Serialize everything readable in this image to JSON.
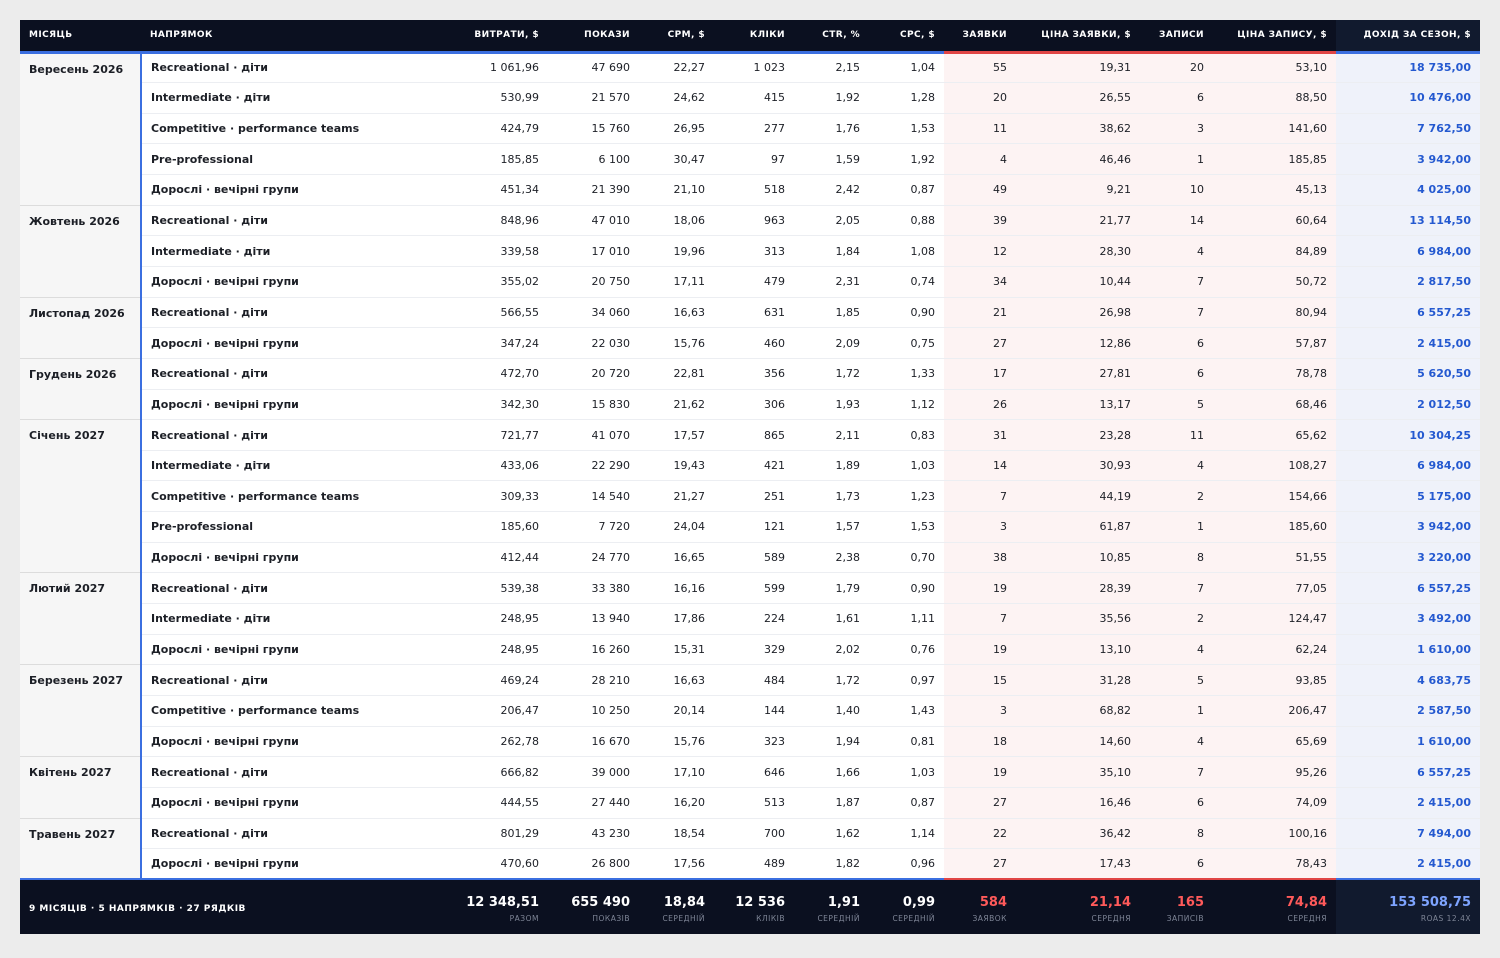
{
  "columns": [
    {
      "key": "month",
      "label": "МІСЯЦЬ"
    },
    {
      "key": "direction",
      "label": "НАПРЯМОК"
    },
    {
      "key": "spend",
      "label": "ВИТРАТИ, $"
    },
    {
      "key": "impressions",
      "label": "ПОКАЗИ"
    },
    {
      "key": "cpm",
      "label": "CPM, $"
    },
    {
      "key": "clicks",
      "label": "КЛІКИ"
    },
    {
      "key": "ctr",
      "label": "CTR, %"
    },
    {
      "key": "cpc",
      "label": "CPC, $"
    },
    {
      "key": "leads",
      "label": "ЗАЯВКИ"
    },
    {
      "key": "lead_price",
      "label": "ЦІНА ЗАЯВКИ, $"
    },
    {
      "key": "signups",
      "label": "ЗАПИСИ"
    },
    {
      "key": "signup_price",
      "label": "ЦІНА ЗАПИСУ, $"
    },
    {
      "key": "revenue",
      "label": "ДОХІД ЗА СЕЗОН, $"
    }
  ],
  "months": [
    {
      "name": "Вересень 2026",
      "rows": [
        [
          "Recreational · діти",
          "1 061,96",
          "47 690",
          "22,27",
          "1 023",
          "2,15",
          "1,04",
          "55",
          "19,31",
          "20",
          "53,10",
          "18 735,00"
        ],
        [
          "Intermediate · діти",
          "530,99",
          "21 570",
          "24,62",
          "415",
          "1,92",
          "1,28",
          "20",
          "26,55",
          "6",
          "88,50",
          "10 476,00"
        ],
        [
          "Competitive · performance teams",
          "424,79",
          "15 760",
          "26,95",
          "277",
          "1,76",
          "1,53",
          "11",
          "38,62",
          "3",
          "141,60",
          "7 762,50"
        ],
        [
          "Pre-professional",
          "185,85",
          "6 100",
          "30,47",
          "97",
          "1,59",
          "1,92",
          "4",
          "46,46",
          "1",
          "185,85",
          "3 942,00"
        ],
        [
          "Дорослі · вечірні групи",
          "451,34",
          "21 390",
          "21,10",
          "518",
          "2,42",
          "0,87",
          "49",
          "9,21",
          "10",
          "45,13",
          "4 025,00"
        ]
      ]
    },
    {
      "name": "Жовтень 2026",
      "rows": [
        [
          "Recreational · діти",
          "848,96",
          "47 010",
          "18,06",
          "963",
          "2,05",
          "0,88",
          "39",
          "21,77",
          "14",
          "60,64",
          "13 114,50"
        ],
        [
          "Intermediate · діти",
          "339,58",
          "17 010",
          "19,96",
          "313",
          "1,84",
          "1,08",
          "12",
          "28,30",
          "4",
          "84,89",
          "6 984,00"
        ],
        [
          "Дорослі · вечірні групи",
          "355,02",
          "20 750",
          "17,11",
          "479",
          "2,31",
          "0,74",
          "34",
          "10,44",
          "7",
          "50,72",
          "2 817,50"
        ]
      ]
    },
    {
      "name": "Листопад 2026",
      "rows": [
        [
          "Recreational · діти",
          "566,55",
          "34 060",
          "16,63",
          "631",
          "1,85",
          "0,90",
          "21",
          "26,98",
          "7",
          "80,94",
          "6 557,25"
        ],
        [
          "Дорослі · вечірні групи",
          "347,24",
          "22 030",
          "15,76",
          "460",
          "2,09",
          "0,75",
          "27",
          "12,86",
          "6",
          "57,87",
          "2 415,00"
        ]
      ]
    },
    {
      "name": "Грудень 2026",
      "rows": [
        [
          "Recreational · діти",
          "472,70",
          "20 720",
          "22,81",
          "356",
          "1,72",
          "1,33",
          "17",
          "27,81",
          "6",
          "78,78",
          "5 620,50"
        ],
        [
          "Дорослі · вечірні групи",
          "342,30",
          "15 830",
          "21,62",
          "306",
          "1,93",
          "1,12",
          "26",
          "13,17",
          "5",
          "68,46",
          "2 012,50"
        ]
      ]
    },
    {
      "name": "Січень 2027",
      "rows": [
        [
          "Recreational · діти",
          "721,77",
          "41 070",
          "17,57",
          "865",
          "2,11",
          "0,83",
          "31",
          "23,28",
          "11",
          "65,62",
          "10 304,25"
        ],
        [
          "Intermediate · діти",
          "433,06",
          "22 290",
          "19,43",
          "421",
          "1,89",
          "1,03",
          "14",
          "30,93",
          "4",
          "108,27",
          "6 984,00"
        ],
        [
          "Competitive · performance teams",
          "309,33",
          "14 540",
          "21,27",
          "251",
          "1,73",
          "1,23",
          "7",
          "44,19",
          "2",
          "154,66",
          "5 175,00"
        ],
        [
          "Pre-professional",
          "185,60",
          "7 720",
          "24,04",
          "121",
          "1,57",
          "1,53",
          "3",
          "61,87",
          "1",
          "185,60",
          "3 942,00"
        ],
        [
          "Дорослі · вечірні групи",
          "412,44",
          "24 770",
          "16,65",
          "589",
          "2,38",
          "0,70",
          "38",
          "10,85",
          "8",
          "51,55",
          "3 220,00"
        ]
      ]
    },
    {
      "name": "Лютий 2027",
      "rows": [
        [
          "Recreational · діти",
          "539,38",
          "33 380",
          "16,16",
          "599",
          "1,79",
          "0,90",
          "19",
          "28,39",
          "7",
          "77,05",
          "6 557,25"
        ],
        [
          "Intermediate · діти",
          "248,95",
          "13 940",
          "17,86",
          "224",
          "1,61",
          "1,11",
          "7",
          "35,56",
          "2",
          "124,47",
          "3 492,00"
        ],
        [
          "Дорослі · вечірні групи",
          "248,95",
          "16 260",
          "15,31",
          "329",
          "2,02",
          "0,76",
          "19",
          "13,10",
          "4",
          "62,24",
          "1 610,00"
        ]
      ]
    },
    {
      "name": "Березень 2027",
      "rows": [
        [
          "Recreational · діти",
          "469,24",
          "28 210",
          "16,63",
          "484",
          "1,72",
          "0,97",
          "15",
          "31,28",
          "5",
          "93,85",
          "4 683,75"
        ],
        [
          "Competitive · performance teams",
          "206,47",
          "10 250",
          "20,14",
          "144",
          "1,40",
          "1,43",
          "3",
          "68,82",
          "1",
          "206,47",
          "2 587,50"
        ],
        [
          "Дорослі · вечірні групи",
          "262,78",
          "16 670",
          "15,76",
          "323",
          "1,94",
          "0,81",
          "18",
          "14,60",
          "4",
          "65,69",
          "1 610,00"
        ]
      ]
    },
    {
      "name": "Квітень 2027",
      "rows": [
        [
          "Recreational · діти",
          "666,82",
          "39 000",
          "17,10",
          "646",
          "1,66",
          "1,03",
          "19",
          "35,10",
          "7",
          "95,26",
          "6 557,25"
        ],
        [
          "Дорослі · вечірні групи",
          "444,55",
          "27 440",
          "16,20",
          "513",
          "1,87",
          "0,87",
          "27",
          "16,46",
          "6",
          "74,09",
          "2 415,00"
        ]
      ]
    },
    {
      "name": "Травень 2027",
      "rows": [
        [
          "Recreational · діти",
          "801,29",
          "43 230",
          "18,54",
          "700",
          "1,62",
          "1,14",
          "22",
          "36,42",
          "8",
          "100,16",
          "7 494,00"
        ],
        [
          "Дорослі · вечірні групи",
          "470,60",
          "26 800",
          "17,56",
          "489",
          "1,82",
          "0,96",
          "27",
          "17,43",
          "6",
          "78,43",
          "2 415,00"
        ]
      ]
    }
  ],
  "footer": {
    "summary": "9 МІСЯЦІВ · 5 НАПРЯМКІВ · 27 РЯДКІВ",
    "cells": [
      {
        "value": "12 348,51",
        "label": "РАЗОМ"
      },
      {
        "value": "655 490",
        "label": "ПОКАЗІВ"
      },
      {
        "value": "18,84",
        "label": "СЕРЕДНІЙ"
      },
      {
        "value": "12 536",
        "label": "КЛІКІВ"
      },
      {
        "value": "1,91",
        "label": "СЕРЕДНІЙ"
      },
      {
        "value": "0,99",
        "label": "СЕРЕДНІЙ"
      },
      {
        "value": "584",
        "label": "ЗАЯВОК"
      },
      {
        "value": "21,14",
        "label": "СЕРЕДНЯ"
      },
      {
        "value": "165",
        "label": "ЗАПИСІВ"
      },
      {
        "value": "74,84",
        "label": "СЕРЕДНЯ"
      },
      {
        "value": "153 508,75",
        "label": "ROAS 12.4X"
      }
    ]
  },
  "colors": {
    "header_bg": "#0b1020",
    "accent_blue": "#3b6fe0",
    "accent_red": "#e04545",
    "revenue_text": "#2459d0"
  }
}
